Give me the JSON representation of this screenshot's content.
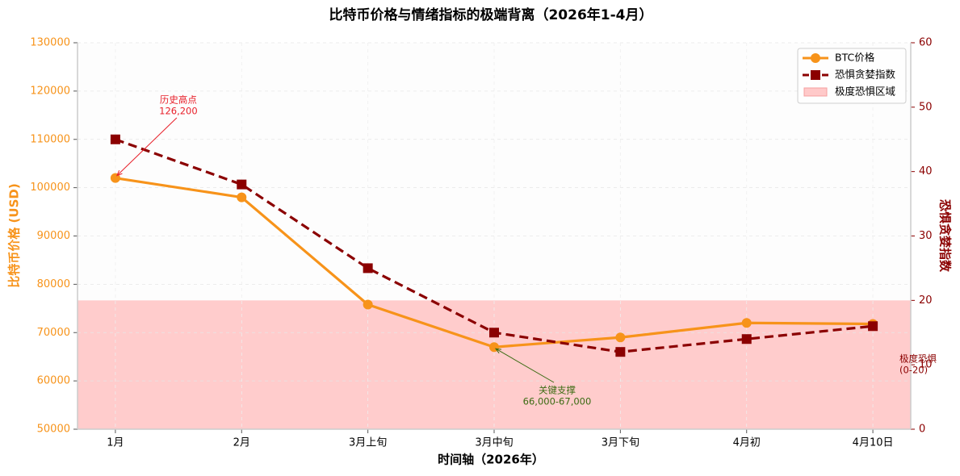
{
  "chart_data": {
    "type": "line",
    "title": "比特币价格与情绪指标的极端背离（2026年1-4月）",
    "x_label": "时间轴（2026年）",
    "y_label": "比特币价格 (USD)",
    "y2_label": "恐惧贪婪指数",
    "categories": [
      "1月",
      "2月",
      "3月上旬",
      "3月中旬",
      "3月下旬",
      "4月初",
      "4月10日"
    ],
    "series": [
      {
        "name": "BTC价格",
        "color": "#f7931a",
        "marker": "circle",
        "dash": false,
        "values": [
          102000,
          98000,
          75800,
          67000,
          69000,
          72000,
          71800
        ]
      },
      {
        "name": "恐惧贪婪指数",
        "color": "#8b0000",
        "marker": "square",
        "dash": true,
        "axis": "y2",
        "values": [
          45,
          38,
          25,
          15,
          12,
          14,
          16
        ]
      }
    ],
    "region": {
      "name": "极度恐惧区域",
      "color": "#ffc9c9",
      "y2range": [
        0,
        20
      ]
    },
    "ylim": [
      50000,
      130000
    ],
    "yticks": [
      50000,
      60000,
      70000,
      80000,
      90000,
      100000,
      110000,
      120000,
      130000
    ],
    "y2lim": [
      0,
      60
    ],
    "y2ticks": [
      0,
      10,
      20,
      30,
      40,
      50,
      60
    ],
    "grid": true,
    "legend": "upper right",
    "annotations": [
      {
        "text": [
          "历史高点",
          "126,200"
        ],
        "color": "#e8202a"
      },
      {
        "text": [
          "关键支撑",
          "66,000-67,000"
        ],
        "color": "#3a6b12"
      },
      {
        "text": [
          "极度恐惧",
          "(0-20)"
        ],
        "color": "#8b0000"
      }
    ]
  }
}
